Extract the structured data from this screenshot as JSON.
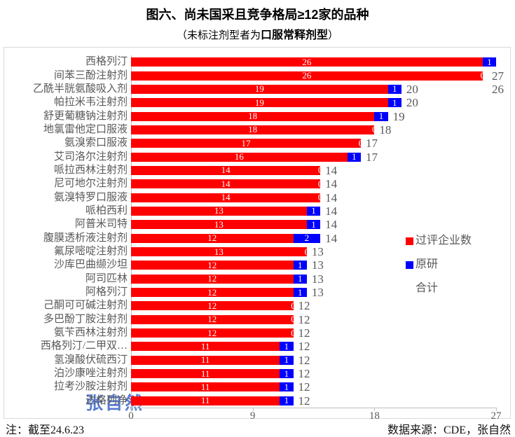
{
  "title": "图六、尚未国采且竞争格局≥12家的品种",
  "subtitle": {
    "prefix": "（未标注剂型者为",
    "bold": "口服常释剂型",
    "suffix": "）"
  },
  "footnote": "注：截至24.6.23",
  "source": "数据来源：CDE，张自然",
  "watermark": "张自然",
  "colors": {
    "passed": "#ff0000",
    "originator": "#0000ff",
    "total_text": "#595959",
    "axis": "#bfbfbf",
    "border": "#d9d9d9",
    "watermark": "#3a64c8"
  },
  "legend": [
    {
      "label": "过评企业数",
      "color": "#ff0000"
    },
    {
      "label": "原研",
      "color": "#0000ff"
    },
    {
      "label": "合计",
      "color": "#ffffff"
    }
  ],
  "chart_data": {
    "type": "bar",
    "orientation": "horizontal",
    "stacked": true,
    "categories": [
      "西格列汀",
      "间苯三酚注射剂",
      "乙酰半胱氨酸吸入剂",
      "帕拉米韦注射剂",
      "舒更葡糖钠注射剂",
      "地氯雷他定口服液",
      "氨溴索口服液",
      "艾司洛尔注射剂",
      "哌拉西林注射剂",
      "尼可地尔注射剂",
      "氨溴特罗口服液",
      "哌柏西利",
      "阿普米司特",
      "腹膜透析液注射剂",
      "氟尿嘧啶注射剂",
      "沙库巴曲缬沙坦",
      "阿司匹林",
      "阿格列汀",
      "己酮可可碱注射剂",
      "多巴酚丁胺注射剂",
      "氨苄西林注射剂",
      "西格列汀/二甲双…",
      "氢溴酸伏硫西汀",
      "泊沙康唑注射剂",
      "拉考沙胺注射剂",
      "达格列净"
    ],
    "series": [
      {
        "name": "过评企业数",
        "color": "#ff0000",
        "values": [
          26,
          26,
          19,
          19,
          18,
          18,
          17,
          16,
          14,
          14,
          14,
          13,
          13,
          12,
          13,
          12,
          12,
          12,
          12,
          12,
          12,
          11,
          11,
          11,
          11,
          11
        ]
      },
      {
        "name": "原研",
        "color": "#0000ff",
        "values": [
          1,
          0,
          1,
          1,
          1,
          0,
          0,
          1,
          0,
          0,
          0,
          1,
          1,
          2,
          0,
          1,
          1,
          1,
          0,
          0,
          0,
          1,
          1,
          1,
          1,
          1
        ]
      }
    ],
    "totals": [
      27,
      26,
      20,
      20,
      19,
      18,
      17,
      17,
      14,
      14,
      14,
      14,
      14,
      14,
      13,
      13,
      13,
      13,
      12,
      12,
      12,
      12,
      12,
      12,
      12,
      12
    ],
    "xlim": [
      0,
      27
    ],
    "xticks": [
      0,
      9,
      18,
      27
    ],
    "grid": false,
    "legend_position": "right-middle"
  }
}
